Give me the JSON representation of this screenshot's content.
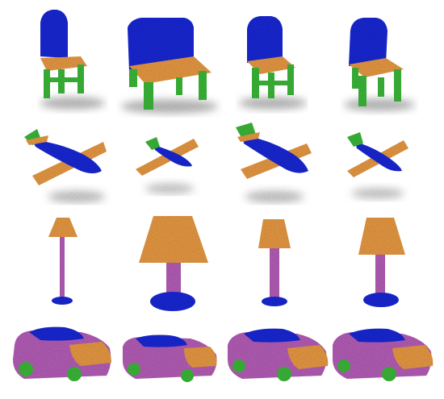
{
  "figure": {
    "rows": [
      {
        "category": "chair",
        "count": 4
      },
      {
        "category": "airplane",
        "count": 4
      },
      {
        "category": "lamp",
        "count": 4
      },
      {
        "category": "car",
        "count": 4
      }
    ]
  },
  "colors": {
    "blue": "#1b2bd6",
    "orange": "#e89a45",
    "green": "#3cb83a",
    "purple": "#b55fb8",
    "shadow": "#9c9c9c",
    "background": "#ffffff"
  }
}
